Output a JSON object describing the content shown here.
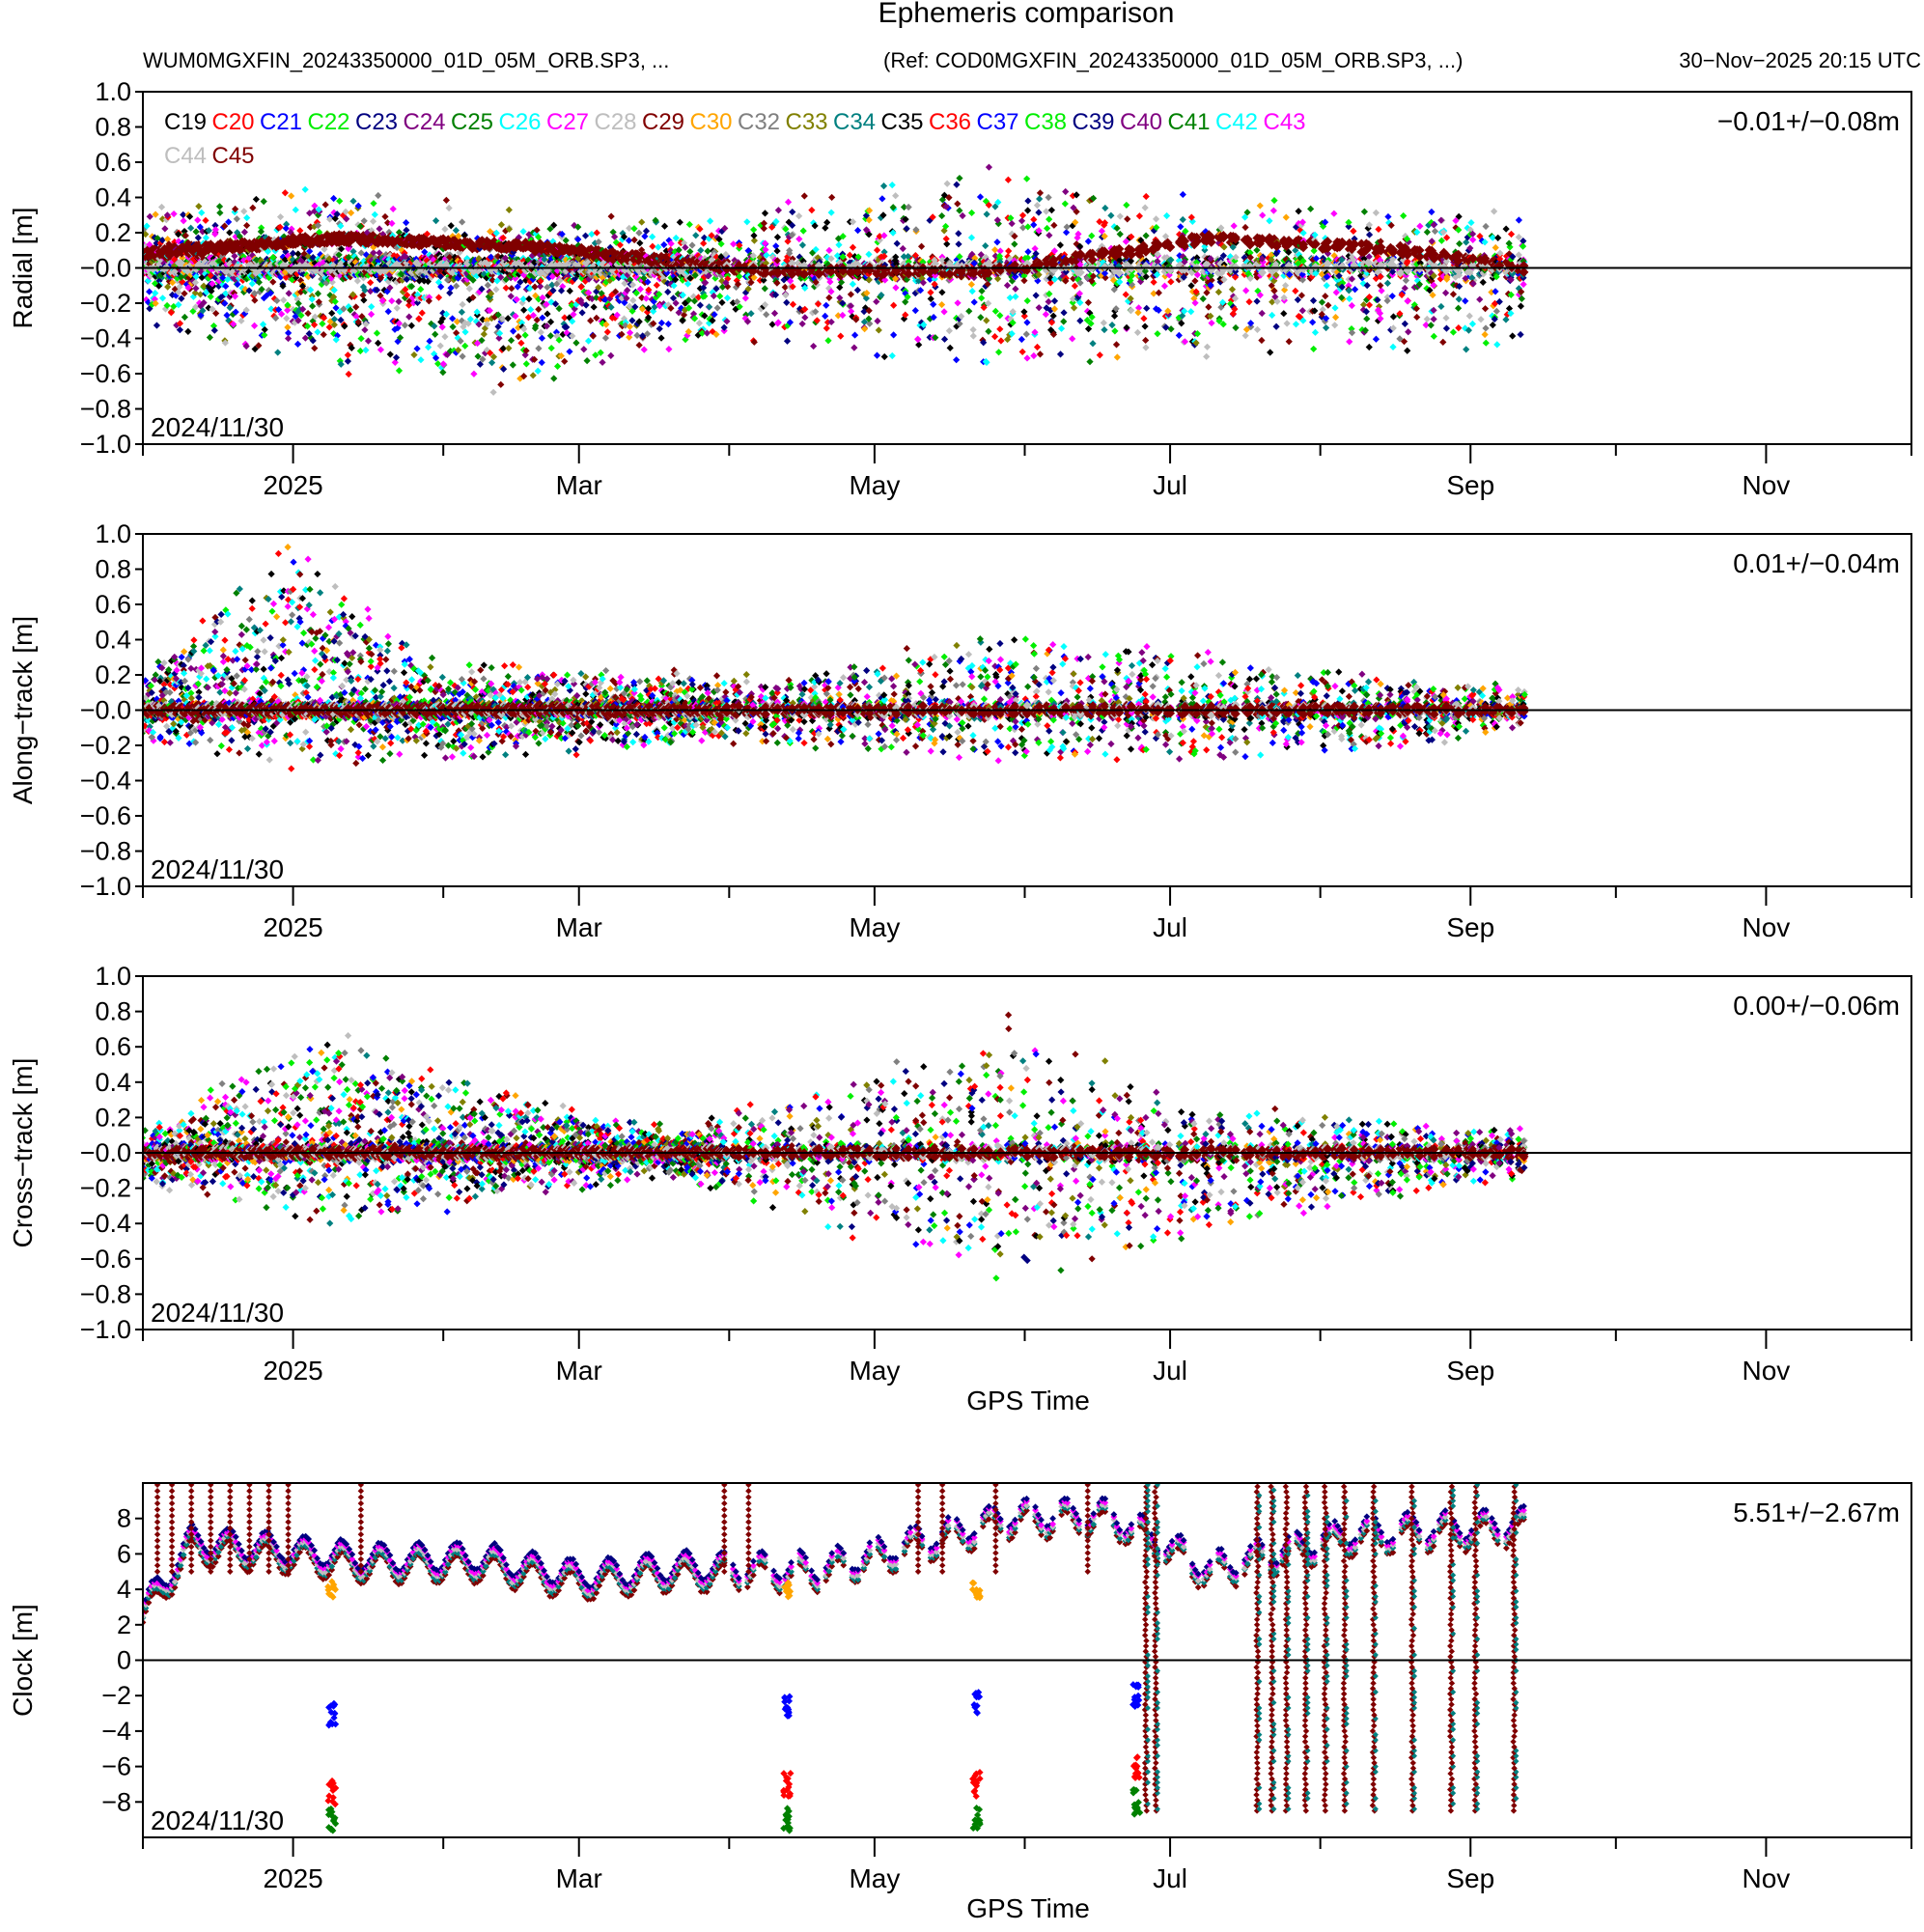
{
  "header": {
    "title": "Ephemeris comparison",
    "file": "WUM0MGXFIN_20243350000_01D_05M_ORB.SP3, ...",
    "ref": "(Ref: COD0MGXFIN_20243350000_01D_05M_ORB.SP3, ...)",
    "timestamp": "30−Nov−2025 20:15 UTC"
  },
  "legend": {
    "sats": [
      "C19",
      "C20",
      "C21",
      "C22",
      "C23",
      "C24",
      "C25",
      "C26",
      "C27",
      "C28",
      "C29",
      "C30",
      "C32",
      "C33",
      "C34",
      "C35",
      "C36",
      "C37",
      "C38",
      "C39",
      "C40",
      "C41",
      "C42",
      "C43",
      "C44",
      "C45"
    ],
    "colors": [
      "#000000",
      "#ff0000",
      "#0000ff",
      "#00ee00",
      "#000080",
      "#800080",
      "#008000",
      "#00ffff",
      "#ff00ff",
      "#bebebe",
      "#800000",
      "#ffa500",
      "#808080",
      "#808000",
      "#008080",
      "#000000",
      "#ff0000",
      "#0000ff",
      "#00ee00",
      "#000080",
      "#800080",
      "#008000",
      "#00ffff",
      "#ff00ff",
      "#bebebe",
      "#800000"
    ]
  },
  "chart_data": [
    {
      "type": "scatter",
      "name": "radial",
      "ylabel": "Radial [m]",
      "ylim": [
        -1.0,
        1.0
      ],
      "yticks": [
        "1.0",
        "0.8",
        "0.6",
        "0.4",
        "0.2",
        "−0.0",
        "−0.2",
        "−0.4",
        "−0.6",
        "−0.8",
        "−1.0"
      ],
      "stat": "−0.01+/−0.08m",
      "date_label": "2024/11/30",
      "xlabel": "",
      "xticks": [
        "2025",
        "Mar",
        "May",
        "Jul",
        "Sep",
        "Nov"
      ],
      "reference_line": 0,
      "envelope": [
        {
          "day": 0,
          "lo": -0.35,
          "hi": 0.35
        },
        {
          "day": 40,
          "lo": -0.6,
          "hi": 0.5
        },
        {
          "day": 70,
          "lo": -0.75,
          "hi": 0.35
        },
        {
          "day": 100,
          "lo": -0.55,
          "hi": 0.3
        },
        {
          "day": 130,
          "lo": -0.45,
          "hi": 0.4
        },
        {
          "day": 175,
          "lo": -0.65,
          "hi": 0.65
        },
        {
          "day": 220,
          "lo": -0.55,
          "hi": 0.4
        },
        {
          "day": 285,
          "lo": -0.5,
          "hi": 0.35
        }
      ],
      "series_trend": {
        "name": "C45",
        "points": [
          [
            0,
            0.08
          ],
          [
            40,
            0.17
          ],
          [
            80,
            0.12
          ],
          [
            100,
            0.06
          ],
          [
            130,
            -0.02
          ],
          [
            175,
            -0.02
          ],
          [
            200,
            0.08
          ],
          [
            220,
            0.17
          ],
          [
            260,
            0.1
          ],
          [
            285,
            0.0
          ]
        ]
      }
    },
    {
      "type": "scatter",
      "name": "along-track",
      "ylabel": "Along−track [m]",
      "ylim": [
        -1.0,
        1.0
      ],
      "yticks": [
        "1.0",
        "0.8",
        "0.6",
        "0.4",
        "0.2",
        "−0.0",
        "−0.2",
        "−0.4",
        "−0.6",
        "−0.8",
        "−1.0"
      ],
      "stat": "0.01+/−0.04m",
      "date_label": "2024/11/30",
      "xlabel": "",
      "xticks": [
        "2025",
        "Mar",
        "May",
        "Jul",
        "Sep",
        "Nov"
      ],
      "reference_line": 0,
      "envelope": [
        {
          "day": 0,
          "lo": -0.2,
          "hi": 0.25
        },
        {
          "day": 30,
          "lo": -0.35,
          "hi": 1.0
        },
        {
          "day": 60,
          "lo": -0.3,
          "hi": 0.3
        },
        {
          "day": 130,
          "lo": -0.2,
          "hi": 0.2
        },
        {
          "day": 180,
          "lo": -0.35,
          "hi": 0.5
        },
        {
          "day": 260,
          "lo": -0.25,
          "hi": 0.2
        },
        {
          "day": 285,
          "lo": -0.1,
          "hi": 0.15
        }
      ],
      "series_trend": {
        "name": "C45",
        "points": [
          [
            0,
            0.0
          ],
          [
            285,
            0.0
          ]
        ]
      }
    },
    {
      "type": "scatter",
      "name": "cross-track",
      "ylabel": "Cross−track [m]",
      "ylim": [
        -1.0,
        1.0
      ],
      "yticks": [
        "1.0",
        "0.8",
        "0.6",
        "0.4",
        "0.2",
        "−0.0",
        "−0.2",
        "−0.4",
        "−0.6",
        "−0.8",
        "−1.0"
      ],
      "stat": "0.00+/−0.06m",
      "date_label": "2024/11/30",
      "xlabel": "GPS Time",
      "xticks": [
        "2025",
        "Mar",
        "May",
        "Jul",
        "Sep",
        "Nov"
      ],
      "reference_line": 0,
      "envelope": [
        {
          "day": 0,
          "lo": -0.2,
          "hi": 0.15
        },
        {
          "day": 40,
          "lo": -0.45,
          "hi": 0.75
        },
        {
          "day": 70,
          "lo": -0.3,
          "hi": 0.4
        },
        {
          "day": 110,
          "lo": -0.15,
          "hi": 0.15
        },
        {
          "day": 180,
          "lo": -0.8,
          "hi": 0.8
        },
        {
          "day": 215,
          "lo": -0.5,
          "hi": 0.3
        },
        {
          "day": 285,
          "lo": -0.15,
          "hi": 0.15
        }
      ],
      "series_trend": {
        "name": "C45",
        "points": [
          [
            0,
            0.0
          ],
          [
            285,
            0.0
          ]
        ]
      }
    },
    {
      "type": "scatter",
      "name": "clock",
      "ylabel": "Clock [m]",
      "ylim": [
        -10,
        10
      ],
      "yticks": [
        "8",
        "6",
        "4",
        "2",
        "0",
        "−2",
        "−4",
        "−6",
        "−8"
      ],
      "stat": "5.51+/−2.67m",
      "date_label": "2024/11/30",
      "xlabel": "GPS Time",
      "xticks": [
        "2025",
        "Mar",
        "May",
        "Jul",
        "Sep",
        "Nov"
      ],
      "reference_line": 0,
      "baseline": [
        [
          0,
          2.5
        ],
        [
          10,
          6.5
        ],
        [
          30,
          6.0
        ],
        [
          45,
          5.5
        ],
        [
          70,
          5.5
        ],
        [
          90,
          4.5
        ],
        [
          110,
          5.0
        ],
        [
          140,
          5.0
        ],
        [
          160,
          6.5
        ],
        [
          180,
          8.0
        ],
        [
          200,
          8.0
        ],
        [
          220,
          5.0
        ],
        [
          250,
          7.0
        ],
        [
          285,
          7.5
        ]
      ],
      "clusters": [
        {
          "day": 39,
          "values": [
            -3.0,
            -7.5,
            -9.0
          ],
          "names": [
            "C37",
            "C36",
            "C41"
          ]
        },
        {
          "day": 133,
          "values": [
            -2.5,
            -7.0,
            -9.0
          ],
          "names": [
            "C37",
            "C36",
            "C41"
          ]
        },
        {
          "day": 172,
          "values": [
            -2.5,
            -7.0,
            -9.0
          ],
          "names": [
            "C37",
            "C36",
            "C41"
          ]
        },
        {
          "day": 205,
          "values": [
            -2.0,
            -6.0,
            -8.0
          ],
          "names": [
            "C37",
            "C36",
            "C41"
          ]
        }
      ],
      "oranges": [
        {
          "day": 39,
          "value": 4.0
        },
        {
          "day": 133,
          "value": 4.0
        },
        {
          "day": 172,
          "value": 4.0
        }
      ],
      "jumps": [
        207,
        209,
        230,
        233,
        236,
        240,
        244,
        248,
        254,
        262,
        270,
        275,
        283
      ]
    }
  ]
}
